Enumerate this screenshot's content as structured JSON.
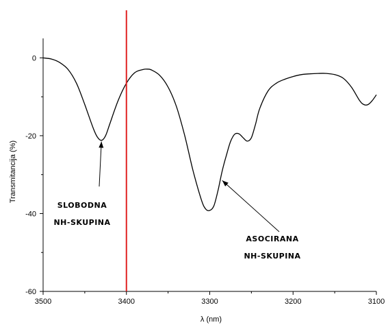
{
  "chart_data": {
    "type": "line",
    "xlabel": "λ (nm)",
    "ylabel": "Transmitancija (%)",
    "xlim": [
      3500,
      3100
    ],
    "ylim": [
      -60,
      5
    ],
    "x_ticks": [
      3500,
      3400,
      3300,
      3200,
      3100
    ],
    "y_ticks": [
      0,
      -20,
      -40,
      -60
    ],
    "x_tick_labels": [
      "3500",
      "3400",
      "3300",
      "3200",
      "3100"
    ],
    "y_tick_labels": [
      "0",
      "-20",
      "-40",
      "-60"
    ],
    "grid": false,
    "series": [
      {
        "color": "#000000",
        "x": [
          3500,
          3490,
          3480,
          3470,
          3460,
          3450,
          3440,
          3435,
          3430,
          3425,
          3420,
          3410,
          3400,
          3390,
          3380,
          3375,
          3370,
          3360,
          3350,
          3340,
          3330,
          3320,
          3310,
          3305,
          3300,
          3295,
          3290,
          3285,
          3280,
          3275,
          3270,
          3265,
          3260,
          3255,
          3250,
          3245,
          3240,
          3230,
          3220,
          3210,
          3200,
          3190,
          3180,
          3170,
          3160,
          3150,
          3140,
          3130,
          3120,
          3115,
          3110,
          3105,
          3100
        ],
        "y": [
          0,
          -0.3,
          -1.2,
          -3,
          -6.5,
          -12,
          -18,
          -20.3,
          -21.2,
          -20,
          -17,
          -11,
          -6.5,
          -3.8,
          -3,
          -2.9,
          -3.1,
          -4.5,
          -7.5,
          -12.5,
          -20,
          -29,
          -36.5,
          -38.8,
          -39.2,
          -38,
          -34,
          -29,
          -25,
          -21.5,
          -19.6,
          -19.5,
          -20.5,
          -21.4,
          -20.5,
          -17,
          -13,
          -8.5,
          -6.5,
          -5.5,
          -4.8,
          -4.3,
          -4.1,
          -4,
          -4,
          -4.3,
          -5.2,
          -7.5,
          -11,
          -12,
          -12,
          -11,
          -9.5
        ]
      }
    ],
    "reference_line": {
      "x": 3400,
      "color": "#e02020"
    },
    "annotations": [
      {
        "lines": [
          "SLOBODNA",
          "NH-SKUPINA"
        ],
        "arrow_to": [
          3430,
          -21.5
        ]
      },
      {
        "lines": [
          "ASOCIRANA",
          "NH-SKUPINA"
        ],
        "arrow_to": [
          3285,
          -31.5
        ]
      }
    ]
  }
}
